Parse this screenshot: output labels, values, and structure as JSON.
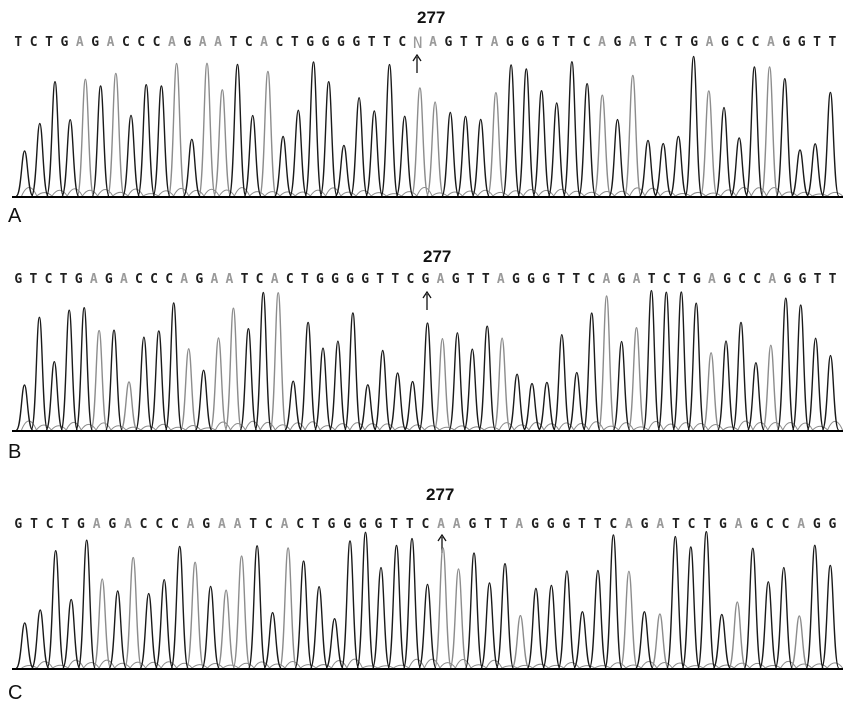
{
  "panels": [
    {
      "letter": "A",
      "position_label": "277",
      "sequence": "TCTGAGACCCAGAATCACTGGGGTTCNAGTTAGGGTTCAGATCTGAGCCAGGTT",
      "marked_base_index": 26
    },
    {
      "letter": "B",
      "position_label": "277",
      "sequence": "GTCTGAGACCCAGAATCACTGGGGTTCGAGTTAGGGTTCAGATCTGAGCCAGGTT",
      "marked_base_index": 27
    },
    {
      "letter": "C",
      "position_label": "277",
      "sequence": "GTCTGAGACCCAGAATCACTGGGGTTCAAGTTAGGGTTCAGATCTGAGCCAGG",
      "marked_base_index": 27
    }
  ],
  "colors": {
    "dark_trace": "#1a1a1a",
    "light_trace": "#8c8c8c",
    "dark_base": "#202020",
    "light_base": "#9a9a9a"
  }
}
